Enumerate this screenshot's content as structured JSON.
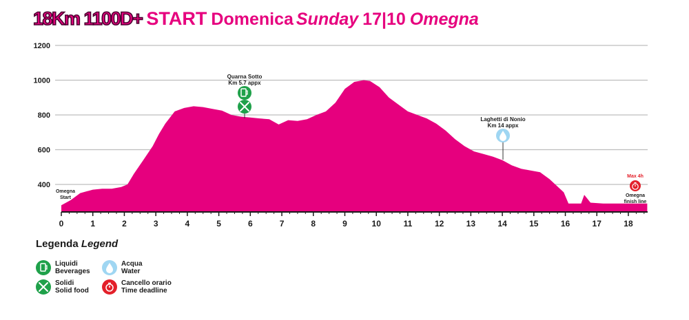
{
  "title": {
    "main": "18Km 1100D+",
    "start": "START",
    "domenica": "Domenica",
    "sunday": "Sunday",
    "date": "17|10",
    "city": "Omegna"
  },
  "colors": {
    "profile": "#e6007e",
    "solid_food": "#1fa14a",
    "beverages": "#1fa14a",
    "water": "#9fd6f2",
    "time_deadline": "#e3202a",
    "grid": "#bdbdbd"
  },
  "chart_data": {
    "type": "area",
    "xlabel": "",
    "ylabel": "",
    "xlim": [
      0,
      18.6
    ],
    "ylim": [
      230,
      1200
    ],
    "grid": true,
    "x_ticks": [
      0,
      1,
      2,
      3,
      4,
      5,
      6,
      7,
      8,
      9,
      10,
      11,
      12,
      13,
      14,
      15,
      16,
      17,
      18
    ],
    "y_ticks": [
      400,
      600,
      800,
      1000,
      1200
    ],
    "series": [
      {
        "x": [
          0,
          0.3,
          0.6,
          1.0,
          1.3,
          1.6,
          1.9,
          2.1,
          2.3,
          2.6,
          2.9,
          3.1,
          3.3,
          3.6,
          3.9,
          4.2,
          4.5,
          4.8,
          5.1,
          5.4,
          5.7,
          6.0,
          6.3,
          6.6,
          6.9,
          7.2,
          7.5,
          7.8,
          8.1,
          8.4,
          8.7,
          9.0,
          9.3,
          9.6,
          9.8,
          10.1,
          10.4,
          10.7,
          11.0,
          11.3,
          11.6,
          11.9,
          12.2,
          12.5,
          12.8,
          13.1,
          13.4,
          13.7,
          14.0,
          14.3,
          14.6,
          14.9,
          15.2,
          15.5,
          15.8,
          15.95,
          16.1,
          16.4,
          16.5,
          16.6,
          16.8,
          17.2,
          17.8,
          18.3,
          18.6
        ],
        "y": [
          280,
          310,
          350,
          370,
          375,
          375,
          385,
          400,
          460,
          540,
          620,
          690,
          750,
          820,
          840,
          850,
          845,
          835,
          825,
          800,
          790,
          785,
          780,
          775,
          745,
          770,
          765,
          775,
          800,
          820,
          870,
          950,
          990,
          1000,
          995,
          960,
          900,
          860,
          820,
          800,
          780,
          750,
          710,
          660,
          620,
          590,
          575,
          560,
          540,
          510,
          490,
          480,
          470,
          430,
          380,
          355,
          290,
          290,
          290,
          340,
          295,
          290,
          290,
          290,
          290
        ]
      }
    ],
    "markers": [
      {
        "label": "Quarna Sotto",
        "sublabel": "Km 5.7 appx",
        "km": 5.8,
        "type": "beverages-solid"
      },
      {
        "label": "Laghetti di Nonio",
        "sublabel": "Km 14 appx",
        "km": 14.0,
        "type": "water"
      },
      {
        "label": "Omegna",
        "sublabel": "Start",
        "km": 0,
        "type": "start"
      },
      {
        "label": "Omegna",
        "sublabel": "finish line",
        "km": 18.3,
        "type": "finish",
        "tag": "Max 4h"
      }
    ]
  },
  "legend": {
    "title": "Legenda",
    "title_en": "Legend",
    "items": [
      {
        "it": "Liquidi",
        "en": "Beverages"
      },
      {
        "it": "Solidi",
        "en": "Solid food"
      },
      {
        "it": "Acqua",
        "en": "Water"
      },
      {
        "it": "Cancello orario",
        "en": "Time deadline"
      }
    ]
  }
}
